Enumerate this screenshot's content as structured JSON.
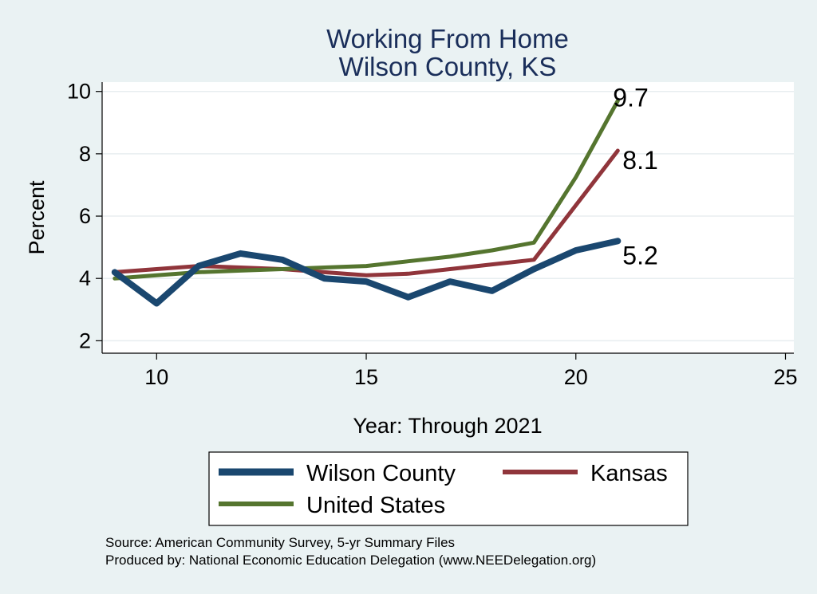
{
  "chart_data": {
    "type": "line",
    "title": [
      "Working From Home",
      "Wilson County, KS"
    ],
    "xlabel": "Year: Through 2021",
    "ylabel": "Percent",
    "xlim": [
      8.7,
      25.2
    ],
    "ylim": [
      1.6,
      10.3
    ],
    "xticks": [
      10,
      15,
      20,
      25
    ],
    "yticks": [
      2,
      4,
      6,
      8,
      10
    ],
    "grid": true,
    "legend_position": "bottom",
    "x": [
      9,
      10,
      11,
      12,
      13,
      14,
      15,
      16,
      17,
      18,
      19,
      20,
      21
    ],
    "series": [
      {
        "name": "Wilson County",
        "color": "#1a476f",
        "width": 8,
        "values": [
          4.2,
          3.2,
          4.4,
          4.8,
          4.6,
          4.0,
          3.9,
          3.4,
          3.9,
          3.6,
          4.3,
          4.9,
          5.2
        ],
        "end_label": "5.2"
      },
      {
        "name": "Kansas",
        "color": "#90353b",
        "width": 5,
        "values": [
          4.2,
          4.3,
          4.4,
          4.35,
          4.3,
          4.2,
          4.1,
          4.15,
          4.3,
          4.45,
          4.6,
          6.35,
          8.1
        ],
        "end_label": "8.1"
      },
      {
        "name": "United States",
        "color": "#55752f",
        "width": 5,
        "values": [
          4.0,
          4.1,
          4.2,
          4.25,
          4.3,
          4.35,
          4.4,
          4.55,
          4.7,
          4.9,
          5.15,
          7.25,
          9.7
        ],
        "end_label": "9.7"
      }
    ]
  },
  "footer": {
    "source": "Source: American Community Survey, 5-yr Summary Files",
    "produced": "Produced by: National Economic Education Delegation (www.NEEDelegation.org)"
  }
}
